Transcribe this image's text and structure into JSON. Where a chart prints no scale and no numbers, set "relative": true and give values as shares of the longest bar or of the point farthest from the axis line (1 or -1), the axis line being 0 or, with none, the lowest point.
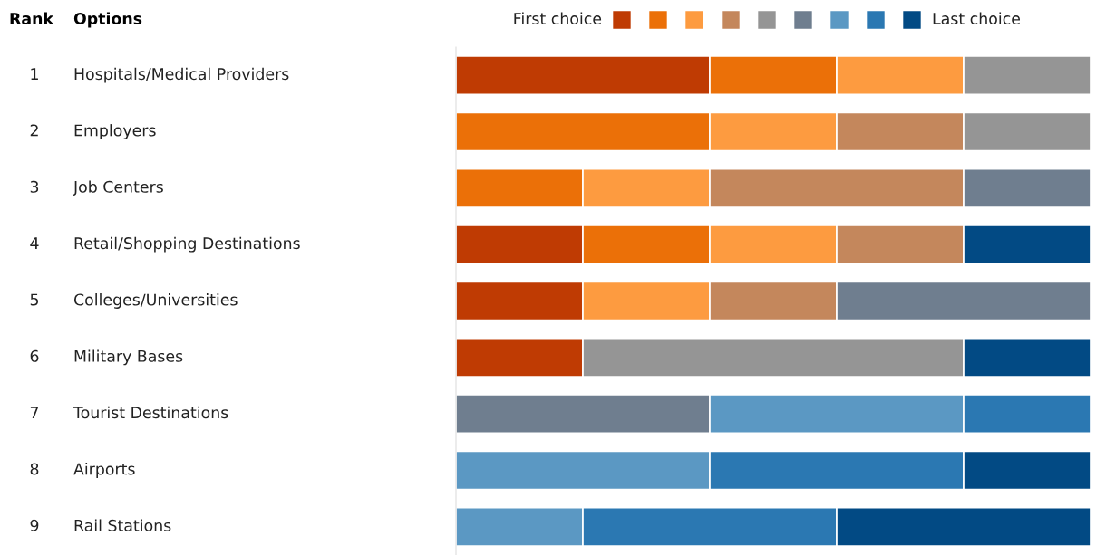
{
  "chart_data": {
    "type": "bar",
    "orientation": "horizontal",
    "stacked": true,
    "relative": true,
    "legend": "top",
    "categories": [
      "Hospitals/Medical Providers",
      "Employers",
      "Job Centers",
      "Retail/Shopping Destinations",
      "Colleges/Universities",
      "Military Bases",
      "Tourist Destinations",
      "Airports",
      "Rail Stations"
    ],
    "annotations": [
      "Rank",
      "Options",
      "1",
      "2",
      "3",
      "4",
      "5",
      "6",
      "7",
      "8",
      "9"
    ],
    "series": [
      {
        "name": "First choice",
        "color": "#bf3b03",
        "values": [
          0.4,
          null,
          null,
          0.2,
          0.2,
          0.2,
          null,
          null,
          null
        ]
      },
      {
        "color": "#eb7008",
        "values": [
          0.2,
          0.4,
          0.2,
          0.2,
          null,
          null,
          null,
          null,
          null
        ]
      },
      {
        "color": "#fd9b40",
        "values": [
          0.2,
          0.2,
          0.2,
          0.2,
          0.2,
          null,
          null,
          null,
          null
        ]
      },
      {
        "color": "#c4875c",
        "values": [
          null,
          0.2,
          0.4,
          0.2,
          0.2,
          null,
          null,
          null,
          null
        ]
      },
      {
        "color": "#959595",
        "values": [
          0.2,
          0.2,
          null,
          null,
          null,
          0.6,
          null,
          null,
          null
        ]
      },
      {
        "color": "#6f7e8f",
        "values": [
          null,
          null,
          0.2,
          null,
          0.4,
          null,
          0.4,
          null,
          null
        ]
      },
      {
        "color": "#5b98c3",
        "values": [
          null,
          null,
          null,
          null,
          null,
          null,
          0.4,
          0.4,
          0.2
        ]
      },
      {
        "color": "#2b78b2",
        "values": [
          null,
          null,
          null,
          null,
          null,
          null,
          0.2,
          0.4,
          0.4
        ]
      },
      {
        "name": "Last choice",
        "color": "#024a84",
        "values": [
          null,
          null,
          null,
          0.2,
          null,
          0.2,
          null,
          0.2,
          0.4
        ]
      }
    ]
  }
}
